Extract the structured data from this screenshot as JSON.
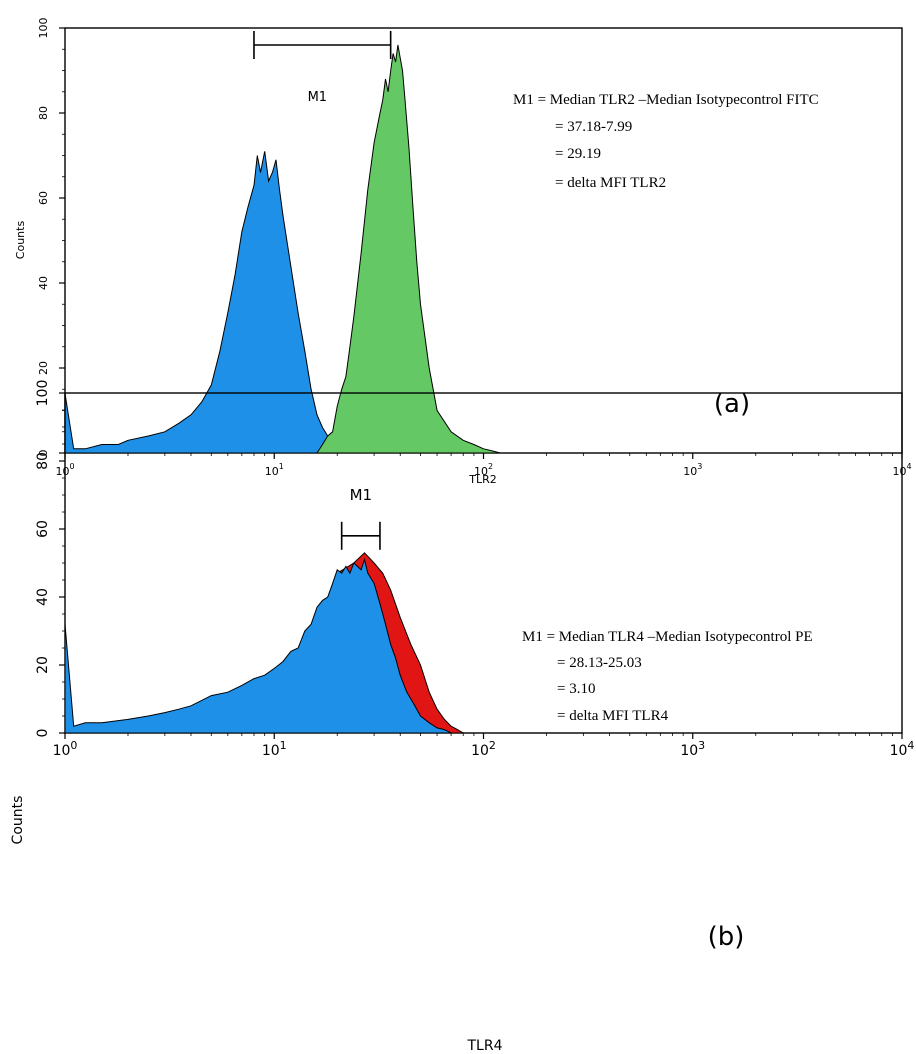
{
  "chart_data": [
    {
      "type": "area",
      "panel_label": "(a)",
      "xlabel": "TLR2",
      "ylabel": "Counts",
      "x_scale": "log",
      "xlim": [
        1,
        10000
      ],
      "ylim": [
        0,
        100
      ],
      "x_ticks": [
        1,
        10,
        100,
        1000,
        10000
      ],
      "y_ticks": [
        0,
        20,
        40,
        60,
        80,
        100
      ],
      "y_tick_labels": [
        "0",
        "20",
        "40",
        "60",
        "80",
        "100"
      ],
      "grid": false,
      "marker": {
        "label": "M1",
        "x_start": 8,
        "x_end": 36,
        "y": 96
      },
      "annotations": [
        "M1 = Median TLR2 –Median Isotypecontrol FITC",
        "=   37.18-7.99",
        "=   29.19",
        "= delta MFI  TLR2"
      ],
      "series": [
        {
          "color": "#1f90e8",
          "x": [
            1,
            1.1,
            1.25,
            1.5,
            1.8,
            2,
            2.5,
            3,
            3.5,
            4,
            4.5,
            5,
            5.5,
            6,
            6.5,
            7,
            7.5,
            8,
            8.3,
            8.6,
            9,
            9.4,
            9.8,
            10.2,
            10.6,
            11,
            12,
            13,
            14,
            15,
            16,
            17,
            18,
            19,
            20,
            22,
            23
          ],
          "y": [
            14,
            1,
            1,
            2,
            2,
            3,
            4,
            5,
            7,
            9,
            12,
            16,
            24,
            33,
            42,
            52,
            58,
            63,
            70,
            66,
            71,
            64,
            66,
            69,
            62,
            56,
            44,
            33,
            24,
            15,
            9,
            6,
            4,
            2,
            1,
            0,
            0
          ]
        },
        {
          "color": "#64c864",
          "x": [
            16,
            17,
            18,
            19,
            20,
            21,
            22,
            23,
            24,
            26,
            28,
            30,
            32,
            33,
            34,
            35,
            36,
            37,
            38,
            39,
            40,
            41,
            42,
            44,
            46,
            48,
            50,
            55,
            60,
            70,
            80,
            90,
            100,
            110,
            120
          ],
          "y": [
            0,
            2,
            4,
            5,
            11,
            15,
            18,
            25,
            32,
            47,
            62,
            73,
            80,
            83,
            88,
            85,
            90,
            94,
            92,
            96,
            93,
            90,
            84,
            72,
            58,
            45,
            35,
            20,
            10,
            5,
            3,
            2,
            1,
            0.5,
            0
          ]
        }
      ]
    },
    {
      "type": "area",
      "panel_label": "(b)",
      "xlabel": "TLR4",
      "ylabel": "Counts",
      "x_scale": "log",
      "xlim": [
        1,
        10000
      ],
      "ylim": [
        0,
        100
      ],
      "x_ticks": [
        1,
        10,
        100,
        1000,
        10000
      ],
      "y_ticks": [
        0,
        20,
        40,
        60,
        80,
        100
      ],
      "y_tick_labels": [
        "0",
        "20",
        "40",
        "60",
        "80",
        "100"
      ],
      "grid": false,
      "marker": {
        "label": "M1",
        "x_start": 21,
        "x_end": 32,
        "y": 58
      },
      "annotations": [
        "M1 = Median TLR4 –Median Isotypecontrol PE",
        "=   28.13-25.03",
        "=     3.10",
        "= delta MFI  TLR4"
      ],
      "series": [
        {
          "color": "#e21515",
          "x": [
            1,
            2,
            3,
            5,
            7,
            10,
            13,
            16,
            20,
            24,
            27,
            30,
            33,
            36,
            40,
            45,
            50,
            55,
            60,
            65,
            70,
            75,
            80
          ],
          "y": [
            0,
            0,
            0,
            0,
            0,
            0,
            0,
            0,
            47,
            50,
            53,
            50,
            47,
            42,
            34,
            26,
            20,
            12,
            7,
            4,
            2,
            1,
            0
          ]
        },
        {
          "color": "#1f90e8",
          "x": [
            1,
            1.1,
            1.25,
            1.5,
            2,
            2.5,
            3,
            3.5,
            4,
            5,
            6,
            7,
            8,
            9,
            10,
            11,
            12,
            13,
            14,
            15,
            16,
            17,
            18,
            19,
            20,
            21,
            22,
            23,
            24,
            25,
            26,
            27,
            28,
            30,
            32,
            34,
            36,
            38,
            40,
            43,
            46,
            50,
            55,
            60,
            65,
            70,
            75
          ],
          "y": [
            32,
            2,
            3,
            3,
            4,
            5,
            6,
            7,
            8,
            11,
            12,
            14,
            16,
            17,
            19,
            21,
            24,
            25,
            30,
            32,
            37,
            39,
            40,
            44,
            48,
            47,
            49,
            47,
            50,
            49,
            48,
            51,
            47,
            44,
            38,
            32,
            26,
            22,
            17,
            12,
            9,
            5,
            3,
            1.5,
            1,
            0,
            0
          ]
        }
      ]
    }
  ]
}
